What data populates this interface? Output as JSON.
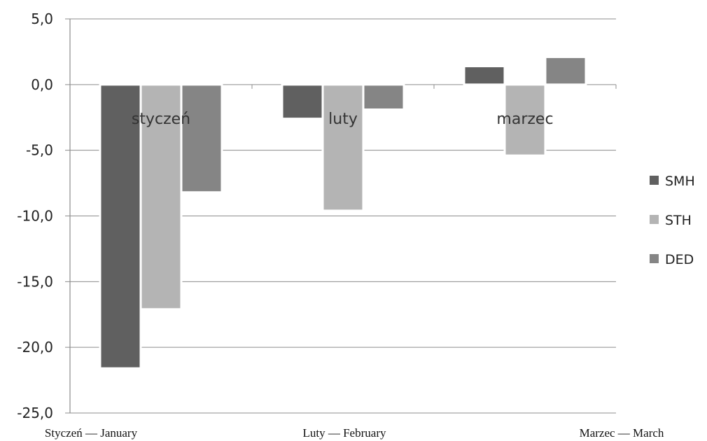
{
  "chart_data": {
    "type": "bar",
    "categories": [
      "styczeń",
      "luty",
      "marzec"
    ],
    "bottom_labels": [
      "Styczeń — January",
      "Luty — February",
      "Marzec — March"
    ],
    "series": [
      {
        "name": "SMH",
        "values": [
          -21.6,
          -2.6,
          1.4
        ],
        "color": "#606060"
      },
      {
        "name": "STH",
        "values": [
          -17.1,
          -9.6,
          -5.4
        ],
        "color": "#b4b4b4"
      },
      {
        "name": "DED",
        "values": [
          -8.2,
          -1.9,
          2.1
        ],
        "color": "#858585"
      }
    ],
    "y_ticks": [
      "5,0",
      "0,0",
      "-5,0",
      "-10,0",
      "-15,0",
      "-20,0",
      "-25,0"
    ],
    "y_tick_values": [
      5,
      0,
      -5,
      -10,
      -15,
      -20,
      -25
    ],
    "ylim": [
      -25,
      5
    ],
    "grid": true,
    "legend_position": "right"
  }
}
